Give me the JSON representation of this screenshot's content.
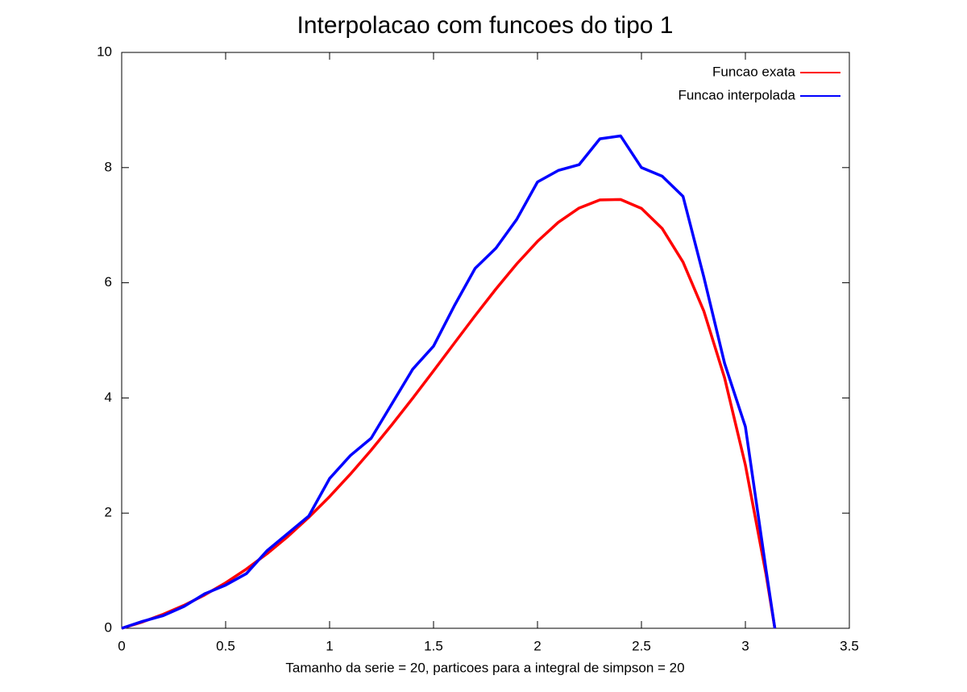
{
  "chart_data": {
    "type": "line",
    "title": "Interpolacao com funcoes do tipo 1",
    "x_label": "Tamanho da serie = 20, particoes para a integral de simpson = 20",
    "x": [
      0,
      0.1,
      0.2,
      0.3,
      0.4,
      0.5,
      0.6,
      0.7,
      0.8,
      0.9,
      1.0,
      1.1,
      1.2,
      1.3,
      1.4,
      1.5,
      1.6,
      1.7,
      1.8,
      1.9,
      2.0,
      2.1,
      2.2,
      2.3,
      2.4,
      2.5,
      2.6,
      2.7,
      2.8,
      2.9,
      3.0,
      3.1,
      3.1416
    ],
    "series": [
      {
        "name": "Funcao exata",
        "color": "#ff0000",
        "values": [
          0,
          0.11,
          0.243,
          0.399,
          0.581,
          0.79,
          1.029,
          1.297,
          1.597,
          1.927,
          2.287,
          2.677,
          3.094,
          3.536,
          3.996,
          4.47,
          4.951,
          5.429,
          5.891,
          6.327,
          6.719,
          7.049,
          7.297,
          7.438,
          7.446,
          7.291,
          6.941,
          6.36,
          5.509,
          4.347,
          2.834,
          0.923,
          0
        ]
      },
      {
        "name": "Funcao interpolada",
        "color": "#0000ff",
        "values": [
          0,
          0.12,
          0.22,
          0.38,
          0.6,
          0.75,
          0.95,
          1.35,
          1.65,
          1.95,
          2.6,
          3.0,
          3.3,
          3.9,
          4.5,
          4.9,
          5.6,
          6.25,
          6.6,
          7.1,
          7.75,
          7.95,
          8.05,
          8.5,
          8.55,
          8.0,
          7.85,
          7.5,
          6.1,
          4.6,
          3.5,
          1.0,
          0
        ]
      }
    ],
    "xlim": [
      0,
      3.5
    ],
    "xticks": [
      0,
      0.5,
      1,
      1.5,
      2,
      2.5,
      3,
      3.5
    ],
    "ylim": [
      0,
      10
    ],
    "yticks": [
      0,
      2,
      4,
      6,
      8,
      10
    ],
    "legend": "top-right"
  }
}
